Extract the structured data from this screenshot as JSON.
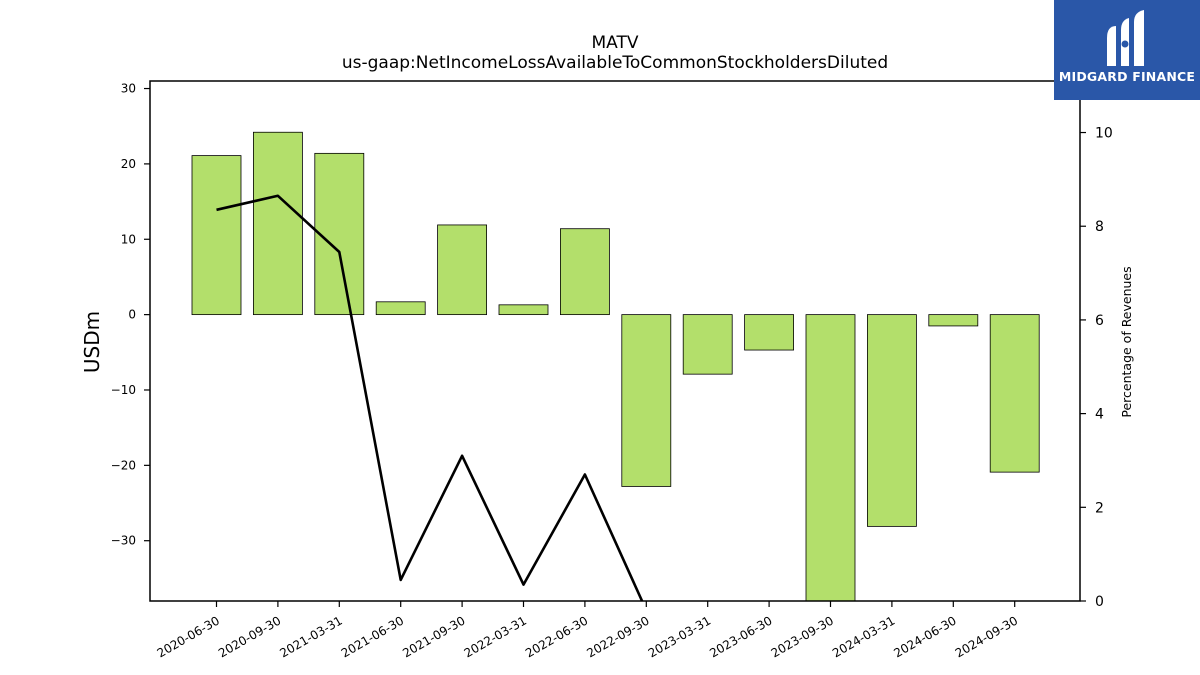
{
  "chart_data": {
    "type": "bar+line",
    "title": "MATV",
    "subtitle": "us-gaap:NetIncomeLossAvailableToCommonStockholdersDiluted",
    "ylabel": "USDm",
    "y2label": "Percentage of Revenues",
    "categories": [
      "2020-06-30",
      "2020-09-30",
      "2021-03-31",
      "2021-06-30",
      "2021-09-30",
      "2022-03-31",
      "2022-06-30",
      "2022-09-30",
      "2023-03-31",
      "2023-06-30",
      "2023-09-30",
      "2024-03-31",
      "2024-06-30",
      "2024-09-30"
    ],
    "series": [
      {
        "axis": "left",
        "kind": "bar",
        "color": "#b3df6b",
        "values": [
          21.1,
          24.2,
          21.4,
          1.7,
          11.9,
          1.3,
          11.4,
          -22.8,
          -7.9,
          -4.7,
          -38.0,
          -28.1,
          -1.5,
          -20.9
        ]
      },
      {
        "axis": "right",
        "kind": "line",
        "color": "#000000",
        "values": [
          8.35,
          8.65,
          7.45,
          0.45,
          3.1,
          0.35,
          2.7,
          -0.2,
          null,
          null,
          null,
          null,
          null,
          null
        ]
      }
    ],
    "ylim": [
      -38,
      31
    ],
    "y2lim": [
      0,
      11.1
    ],
    "yticks": [
      30,
      20,
      10,
      0,
      -10,
      -20,
      -30
    ],
    "yticklabels": [
      "30",
      "20",
      "10",
      "0",
      "−10",
      "−20",
      "−30"
    ],
    "y2ticks": [
      0,
      2,
      4,
      6,
      8,
      10
    ],
    "y2ticklabels": [
      "0",
      "2",
      "4",
      "6",
      "8",
      "10"
    ],
    "grid": false,
    "legend": "none"
  },
  "logo": {
    "text": "MIDGARD FINANCE",
    "color": "#2a57a8"
  }
}
